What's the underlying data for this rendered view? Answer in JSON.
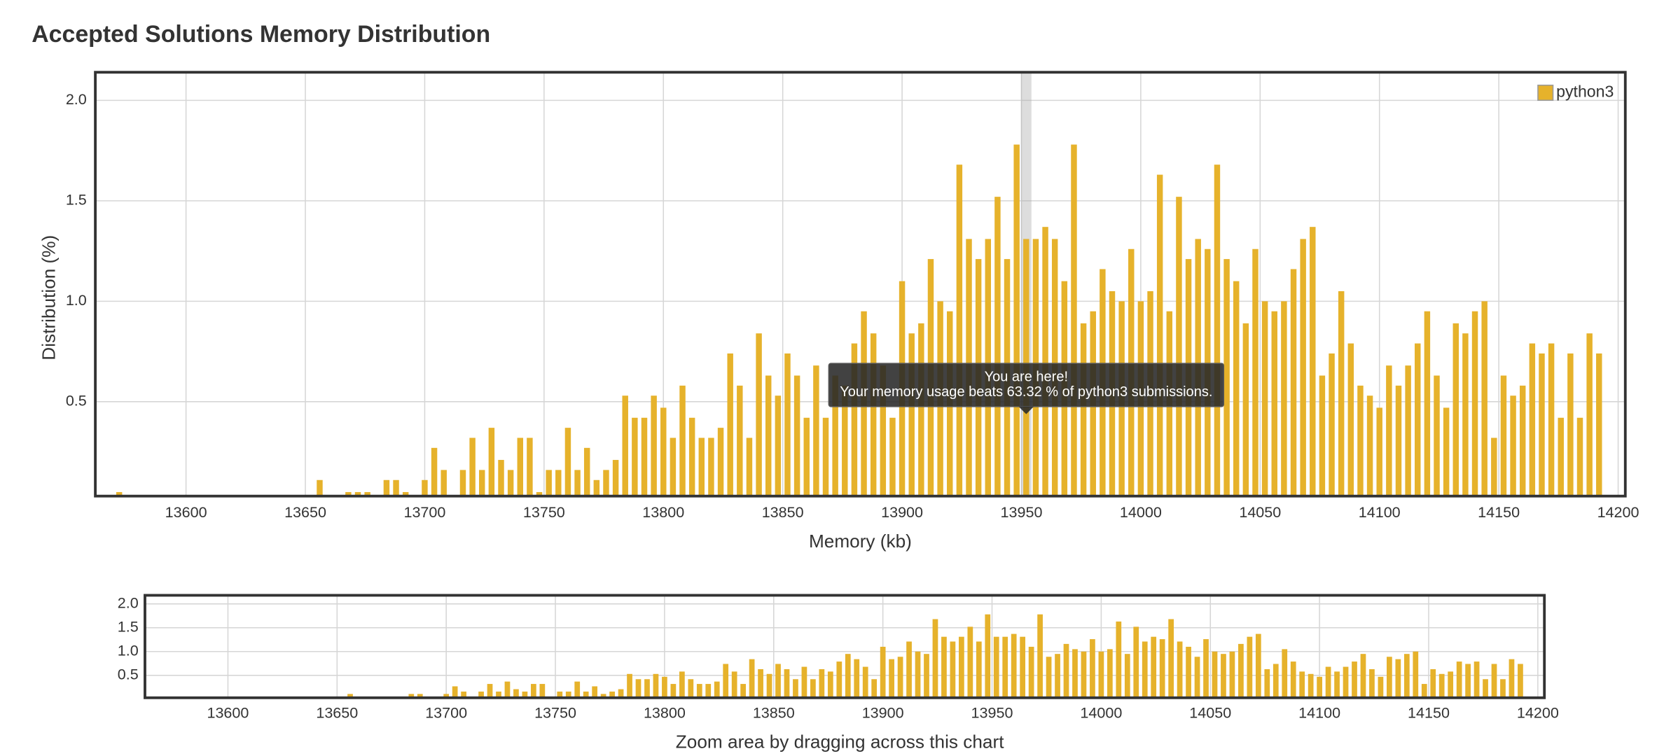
{
  "chart_data": {
    "type": "bar",
    "title": "Accepted Solutions Memory Distribution",
    "xlabel": "Memory (kb)",
    "ylabel": "Distribution (%)",
    "x": [
      13572,
      13656,
      13668,
      13672,
      13676,
      13684,
      13688,
      13692,
      13700,
      13704,
      13708,
      13716,
      13720,
      13724,
      13728,
      13732,
      13736,
      13740,
      13744,
      13748,
      13752,
      13756,
      13760,
      13764,
      13768,
      13772,
      13776,
      13780,
      13784,
      13788,
      13792,
      13796,
      13800,
      13804,
      13808,
      13812,
      13816,
      13820,
      13824,
      13828,
      13832,
      13836,
      13840,
      13844,
      13848,
      13852,
      13856,
      13860,
      13864,
      13868,
      13872,
      13876,
      13880,
      13884,
      13888,
      13892,
      13896,
      13900,
      13904,
      13908,
      13912,
      13916,
      13920,
      13924,
      13928,
      13932,
      13936,
      13940,
      13944,
      13948,
      13952,
      13956,
      13960,
      13964,
      13968,
      13972,
      13976,
      13980,
      13984,
      13988,
      13992,
      13996,
      14000,
      14004,
      14008,
      14012,
      14016,
      14020,
      14024,
      14028,
      14032,
      14036,
      14040,
      14044,
      14048,
      14052,
      14056,
      14060,
      14064,
      14068,
      14072,
      14076,
      14080,
      14084,
      14088,
      14092,
      14096,
      14100,
      14104,
      14108,
      14112,
      14116,
      14120,
      14124,
      14128,
      14132,
      14136,
      14140,
      14144,
      14148,
      14152,
      14156,
      14160,
      14164,
      14168,
      14172,
      14176,
      14180,
      14184,
      14188,
      14192
    ],
    "series": [
      {
        "name": "python3",
        "color": "#e6b22b",
        "values": [
          0.05,
          0.11,
          0.05,
          0.05,
          0.05,
          0.11,
          0.11,
          0.05,
          0.11,
          0.27,
          0.16,
          0.16,
          0.32,
          0.16,
          0.37,
          0.21,
          0.16,
          0.32,
          0.32,
          0.05,
          0.16,
          0.16,
          0.37,
          0.16,
          0.27,
          0.11,
          0.16,
          0.21,
          0.53,
          0.42,
          0.42,
          0.53,
          0.47,
          0.32,
          0.58,
          0.42,
          0.32,
          0.32,
          0.37,
          0.74,
          0.58,
          0.32,
          0.84,
          0.63,
          0.53,
          0.74,
          0.63,
          0.42,
          0.68,
          0.42,
          0.63,
          0.58,
          0.79,
          0.95,
          0.84,
          0.68,
          0.42,
          1.1,
          0.84,
          0.89,
          1.21,
          1.0,
          0.95,
          1.68,
          1.31,
          1.21,
          1.31,
          1.52,
          1.21,
          1.78,
          1.31,
          1.31,
          1.37,
          1.31,
          1.1,
          1.78,
          0.89,
          0.95,
          1.16,
          1.05,
          1.0,
          1.26,
          1.0,
          1.05,
          1.63,
          0.95,
          1.52,
          1.21,
          1.31,
          1.26,
          1.68,
          1.21,
          1.1,
          0.89,
          1.26,
          1.0,
          0.95,
          1.0,
          1.16,
          1.31,
          1.37,
          0.63,
          0.74,
          1.05,
          0.79,
          0.58,
          0.53,
          0.47,
          0.68,
          0.58,
          0.68,
          0.79,
          0.95,
          0.63,
          0.47,
          0.89,
          0.84,
          0.95,
          1.0,
          0.32,
          0.63,
          0.53,
          0.58,
          0.79,
          0.74,
          0.79,
          0.42,
          0.74,
          0.42,
          0.84,
          0.74
        ]
      }
    ],
    "xlim": [
      13562,
      14203
    ],
    "ylim": [
      0.03,
      2.14
    ],
    "xticks": [
      13600,
      13650,
      13700,
      13750,
      13800,
      13850,
      13900,
      13950,
      14000,
      14050,
      14100,
      14150,
      14200
    ],
    "yticks": [
      0.5,
      {
        "value": 1,
        "label": "1.0"
      },
      1.5,
      {
        "value": 2,
        "label": "2.0"
      }
    ],
    "grid": true,
    "legend": "top-right",
    "highlight_x": 13952,
    "tooltip": {
      "title": "You are here!",
      "text": "Your memory usage beats 63.32 % of python3 submissions."
    },
    "navigator": {
      "xlabel": "Zoom area by dragging across this chart",
      "ylim": [
        0.03,
        2.18
      ],
      "yticks": [
        0.5,
        {
          "value": 1,
          "label": "1.0"
        },
        1.5,
        {
          "value": 2,
          "label": "2.0"
        }
      ]
    }
  }
}
